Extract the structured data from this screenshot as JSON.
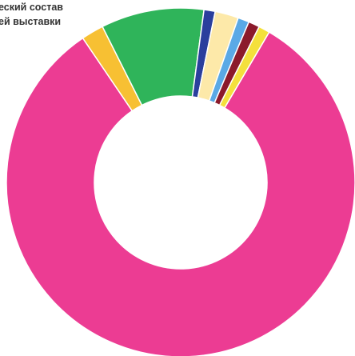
{
  "chart_data": {
    "type": "pie",
    "donut": true,
    "title_lines": [
      "еский состав",
      "ей выставки"
    ],
    "series": [
      {
        "color": "#ec3c93",
        "value": 79.0
      },
      {
        "color": "#f7c033",
        "value": 2.0
      },
      {
        "color": "#2fb45a",
        "value": 9.2
      },
      {
        "color": "#2b3f9d",
        "value": 1.0
      },
      {
        "color": "#fde9a9",
        "value": 2.1
      },
      {
        "color": "#5aa9e6",
        "value": 1.0
      },
      {
        "color": "#8b1a2b",
        "value": 1.0
      },
      {
        "color": "#f4e03c",
        "value": 1.0
      }
    ]
  }
}
